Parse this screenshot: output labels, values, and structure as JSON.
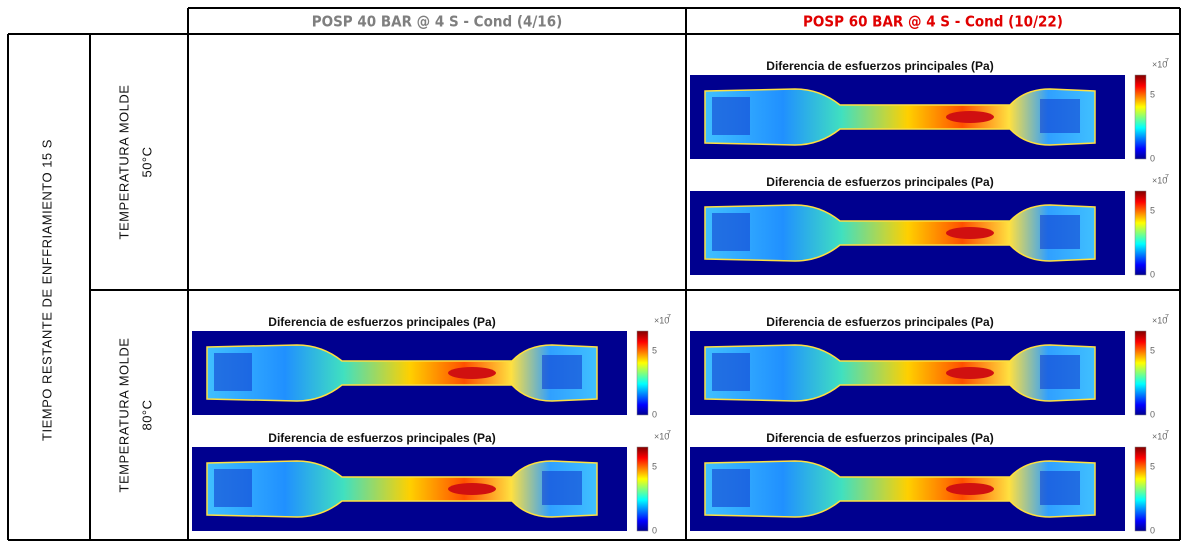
{
  "table": {
    "columns": [
      "POSP 40 BAR @ 4 S - Cond (4/16)",
      "POSP 60 BAR @ 4 S - Cond (10/22)"
    ],
    "row_group": "TIEMPO RESTANTE DE  ENFFRIAMIENTO 15 S",
    "rows": [
      {
        "label": "TEMPERATURA MOLDE",
        "value": "50°C",
        "cells": [
          [],
          [
            {
              "title": "Diferencia de esfuerzos principales (Pa)",
              "multiplier": "×10",
              "exponent": "7",
              "ticks": [
                "5",
                "0"
              ]
            },
            {
              "title": "Diferencia de esfuerzos principales (Pa)",
              "multiplier": "×10",
              "exponent": "7",
              "ticks": [
                "5",
                "0"
              ]
            }
          ]
        ]
      },
      {
        "label": "TEMPERATURA MOLDE",
        "value": "80°C",
        "cells": [
          [
            {
              "title": "Diferencia de esfuerzos principales (Pa)",
              "multiplier": "×10",
              "exponent": "7",
              "ticks": [
                "5",
                "0"
              ]
            },
            {
              "title": "Diferencia de esfuerzos principales (Pa)",
              "multiplier": "×10",
              "exponent": "7",
              "ticks": [
                "5",
                "0"
              ]
            }
          ],
          [
            {
              "title": "Diferencia de esfuerzos principales (Pa)",
              "multiplier": "×10",
              "exponent": "7",
              "ticks": [
                "5",
                "0"
              ]
            },
            {
              "title": "Diferencia de esfuerzos principales (Pa)",
              "multiplier": "×10",
              "exponent": "7",
              "ticks": [
                "5",
                "0"
              ]
            }
          ]
        ]
      }
    ]
  }
}
